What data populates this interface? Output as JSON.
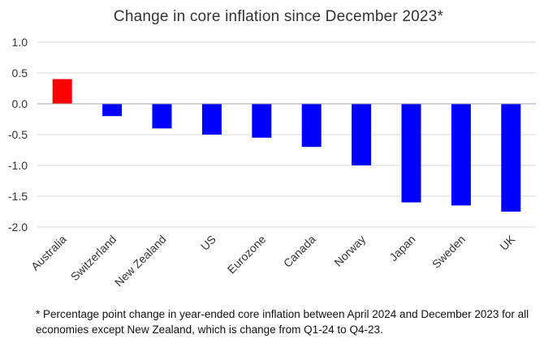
{
  "chart_data": {
    "type": "bar",
    "title": "Change in core inflation since December 2023*",
    "xlabel": "",
    "ylabel": "",
    "categories": [
      "Australia",
      "Switzerland",
      "New Zealand",
      "US",
      "Eurozone",
      "Canada",
      "Norway",
      "Japan",
      "Sweden",
      "UK"
    ],
    "values": [
      0.4,
      -0.2,
      -0.4,
      -0.5,
      -0.55,
      -0.7,
      -1.0,
      -1.6,
      -1.65,
      -1.75
    ],
    "colors": [
      "#ff0000",
      "#0000ff",
      "#0000ff",
      "#0000ff",
      "#0000ff",
      "#0000ff",
      "#0000ff",
      "#0000ff",
      "#0000ff",
      "#0000ff"
    ],
    "ylim": [
      -2.0,
      1.0
    ],
    "yticks": [
      "1.0",
      "0.5",
      "0.0",
      "-0.5",
      "-1.0",
      "-1.5",
      "-2.0"
    ],
    "grid": true,
    "legend": "none"
  },
  "footnote": "* Percentage point change in year-ended core inflation between April 2024 and December 2023 for all economies except New Zealand, which is change from Q1-24 to Q4-23."
}
